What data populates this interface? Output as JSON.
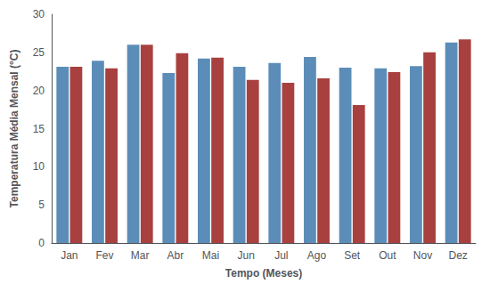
{
  "chart_data": {
    "type": "bar",
    "xlabel": "Tempo (Meses)",
    "ylabel": "Temperatura Média Mensal (°C)",
    "categories": [
      "Jan",
      "Fev",
      "Mar",
      "Abr",
      "Mai",
      "Jun",
      "Jul",
      "Ago",
      "Set",
      "Out",
      "Nov",
      "Dez"
    ],
    "series": [
      {
        "color": "#5b8db8",
        "values": [
          23.1,
          23.9,
          26.0,
          22.3,
          24.2,
          23.1,
          23.6,
          24.4,
          23.0,
          22.9,
          23.2,
          26.3
        ]
      },
      {
        "color": "#a84040",
        "values": [
          23.1,
          22.9,
          26.0,
          24.9,
          24.3,
          21.4,
          21.0,
          21.6,
          18.1,
          22.4,
          25.0,
          26.7
        ]
      }
    ],
    "ylim": [
      0,
      30
    ],
    "yticks": [
      0,
      5,
      10,
      15,
      20,
      25,
      30
    ],
    "grid": false
  }
}
